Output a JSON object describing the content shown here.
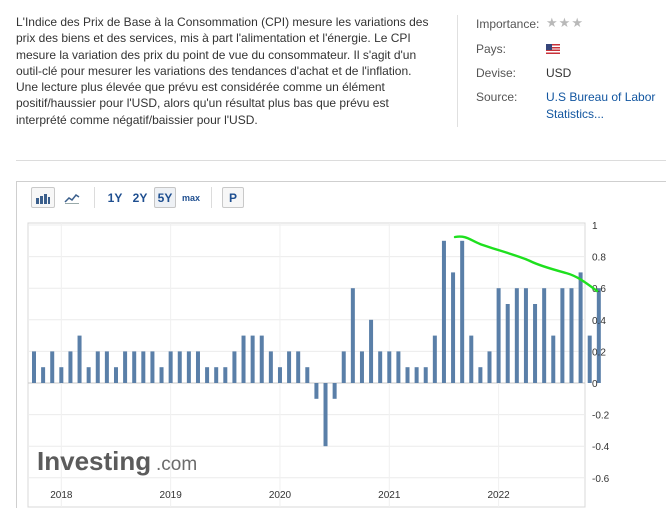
{
  "description": {
    "para1": "L'Indice des Prix de Base à la Consommation (CPI) mesure les variations des prix des biens et des services, mis à part l'alimentation et l'énergie. Le CPI mesure la variation des prix du point de vue du consommateur. Il s'agit d'un outil-clé pour mesurer les variations des tendances d'achat et de l'inflation.",
    "para2": "Une lecture plus élevée que prévu est considérée comme un élément positif/haussier pour l'USD, alors qu'un résultat plus bas que prévu est interprété comme négatif/baissier pour l'USD."
  },
  "info": {
    "importance_label": "Importance:",
    "importance_stars": 3,
    "importance_active_stars": 0,
    "pays_label": "Pays:",
    "pays_flag": "us-flag-icon",
    "devise_label": "Devise:",
    "devise_value": "USD",
    "source_label": "Source:",
    "source_value": "U.S Bureau of Labor Statistics..."
  },
  "toolbar": {
    "bar_chart_icon": "bar-chart-icon",
    "line_chart_icon": "line-chart-icon",
    "ranges": [
      "1Y",
      "2Y",
      "5Y",
      "max"
    ],
    "selected_range": "5Y",
    "p_label": "P"
  },
  "watermark": {
    "brand": "Investing",
    "suffix": ".com"
  },
  "colors": {
    "bar": "#5a7fa8",
    "annotation": "#1ee01e",
    "link": "#1256a0"
  },
  "chart_data": {
    "type": "bar",
    "title": "",
    "xlabel": "",
    "ylabel": "",
    "ylim": [
      -0.6,
      1.0
    ],
    "y_ticks": [
      "1",
      "0.8",
      "0.6",
      "0.4",
      "0.2",
      "0",
      "-0.2",
      "-0.4",
      "-0.6"
    ],
    "x_tick_labels": [
      "2018",
      "2019",
      "2020",
      "2021",
      "2022"
    ],
    "values": [
      0.2,
      0.1,
      0.2,
      0.1,
      0.2,
      0.3,
      0.1,
      0.2,
      0.2,
      0.1,
      0.2,
      0.2,
      0.2,
      0.2,
      0.1,
      0.2,
      0.2,
      0.2,
      0.2,
      0.1,
      0.1,
      0.1,
      0.2,
      0.3,
      0.3,
      0.3,
      0.2,
      0.1,
      0.2,
      0.2,
      0.1,
      -0.1,
      -0.4,
      -0.1,
      0.2,
      0.6,
      0.2,
      0.4,
      0.2,
      0.2,
      0.2,
      0.1,
      0.1,
      0.1,
      0.3,
      0.9,
      0.7,
      0.9,
      0.3,
      0.1,
      0.2,
      0.6,
      0.5,
      0.6,
      0.6,
      0.5,
      0.6,
      0.3,
      0.6,
      0.6,
      0.7,
      0.3,
      0.6
    ],
    "annotation": "hand-drawn green downward trend line over 2021–2022 bars, from about 0.92 down to about 0.6"
  }
}
